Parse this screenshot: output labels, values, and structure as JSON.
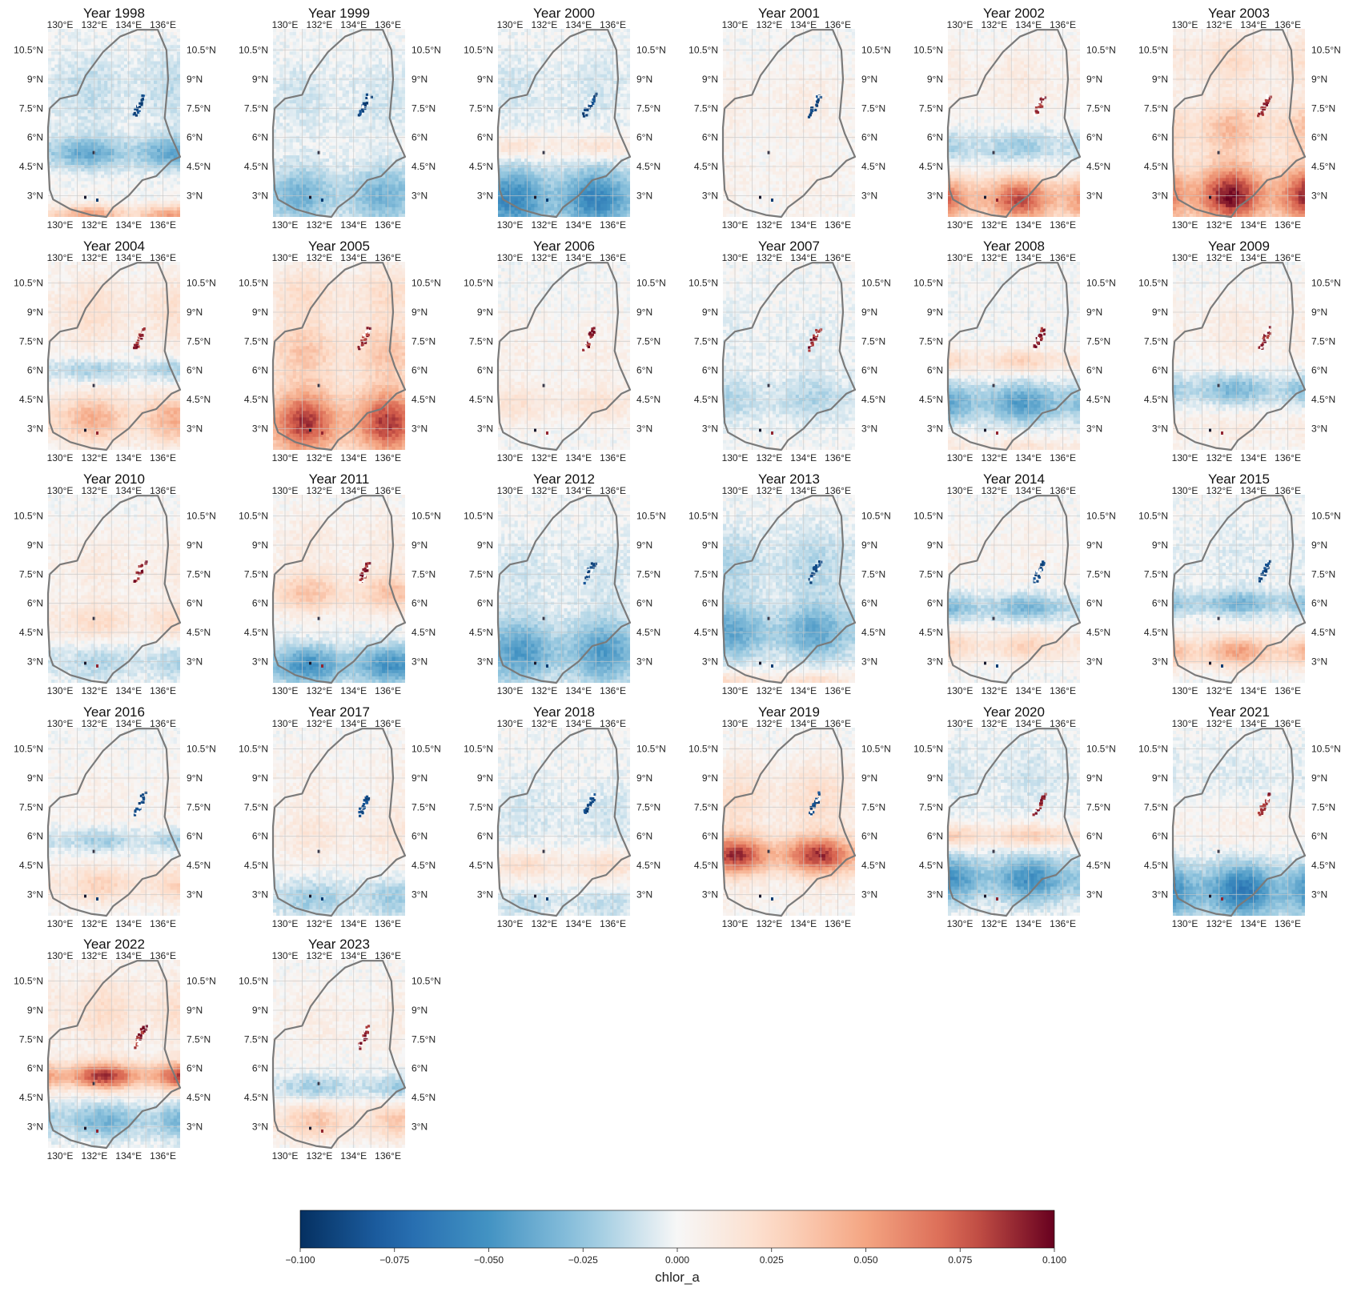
{
  "chart_data": {
    "type": "heatmap",
    "variable": "chlor_a",
    "colormap": "RdBu_r",
    "grid_layout": {
      "rows": 5,
      "cols": 6
    },
    "title_prefix": "Year ",
    "years": [
      "1998",
      "1999",
      "2000",
      "2001",
      "2002",
      "2003",
      "2004",
      "2005",
      "2006",
      "2007",
      "2008",
      "2009",
      "2010",
      "2011",
      "2012",
      "2013",
      "2014",
      "2015",
      "2016",
      "2017",
      "2018",
      "2019",
      "2020",
      "2021",
      "2022",
      "2023"
    ],
    "x_ticks": [
      "130°E",
      "132°E",
      "134°E",
      "136°E"
    ],
    "x_tick_values": [
      130,
      132,
      134,
      136
    ],
    "y_ticks": [
      "10.5°N",
      "9°N",
      "7.5°N",
      "6°N",
      "4.5°N",
      "3°N"
    ],
    "y_tick_values": [
      10.5,
      9,
      7.5,
      6,
      4.5,
      3
    ],
    "lon_range": [
      129.3,
      137.0
    ],
    "lat_range": [
      1.9,
      11.6
    ],
    "colorbar": {
      "label": "chlor_a",
      "vmin": -0.1,
      "vmax": 0.1,
      "ticks": [
        "−0.100",
        "−0.075",
        "−0.050",
        "−0.025",
        "0.000",
        "0.025",
        "0.050",
        "0.075",
        "0.100"
      ],
      "tick_values": [
        -0.1,
        -0.075,
        -0.05,
        -0.025,
        0,
        0.025,
        0.05,
        0.075,
        0.1
      ]
    },
    "boundary_outline": [
      [
        129.4,
        7.5
      ],
      [
        130.0,
        8.0
      ],
      [
        131.0,
        8.2
      ],
      [
        131.5,
        9.2
      ],
      [
        132.5,
        10.4
      ],
      [
        133.5,
        11.2
      ],
      [
        134.5,
        11.55
      ],
      [
        135.7,
        11.55
      ],
      [
        136.2,
        10.5
      ],
      [
        136.3,
        9.0
      ],
      [
        136.1,
        7.0
      ],
      [
        136.4,
        6.2
      ],
      [
        137.0,
        5.0
      ],
      [
        136.5,
        4.8
      ],
      [
        135.6,
        4.0
      ],
      [
        134.8,
        3.8
      ],
      [
        134.0,
        3.0
      ],
      [
        133.1,
        2.4
      ],
      [
        132.7,
        1.9
      ],
      [
        131.8,
        2.0
      ],
      [
        130.6,
        2.3
      ],
      [
        129.6,
        2.8
      ],
      [
        129.4,
        3.3
      ],
      [
        129.3,
        5.0
      ],
      [
        129.3,
        6.5
      ],
      [
        129.4,
        7.5
      ]
    ],
    "anomaly_patterns_note": "per-year spatial anomaly bands (lat center, lat spread, anomaly value)",
    "years_bands": [
      [
        [
          5.2,
          0.8,
          -0.035
        ],
        [
          2.0,
          0.5,
          0.045
        ],
        [
          8.5,
          2.0,
          -0.012
        ]
      ],
      [
        [
          3.0,
          1.5,
          -0.03
        ],
        [
          8.0,
          2.0,
          -0.008
        ]
      ],
      [
        [
          2.8,
          1.6,
          -0.05
        ],
        [
          5.5,
          0.6,
          0.018
        ],
        [
          8.5,
          2.0,
          -0.008
        ]
      ],
      [
        [
          3.5,
          2.0,
          0.006
        ],
        [
          8.0,
          2.0,
          0.008
        ]
      ],
      [
        [
          2.8,
          1.2,
          0.07
        ],
        [
          5.5,
          0.9,
          -0.02
        ],
        [
          9.0,
          2.0,
          0.01
        ]
      ],
      [
        [
          3.0,
          1.6,
          0.085
        ],
        [
          6.5,
          1.4,
          0.035
        ],
        [
          10,
          1.5,
          0.02
        ]
      ],
      [
        [
          3.5,
          1.3,
          0.04
        ],
        [
          6.0,
          0.6,
          -0.02
        ],
        [
          9.0,
          2.0,
          0.018
        ]
      ],
      [
        [
          3.3,
          1.8,
          0.075
        ],
        [
          7.0,
          1.5,
          0.03
        ],
        [
          10,
          1.5,
          0.02
        ]
      ],
      [
        [
          4.2,
          1.0,
          0.015
        ],
        [
          7.0,
          2.0,
          0.006
        ]
      ],
      [
        [
          4.5,
          1.2,
          -0.015
        ],
        [
          7.5,
          2.0,
          -0.004
        ]
      ],
      [
        [
          4.3,
          1.0,
          -0.04
        ],
        [
          6.5,
          0.6,
          0.025
        ],
        [
          2.0,
          0.6,
          0.015
        ]
      ],
      [
        [
          5.0,
          0.8,
          -0.03
        ],
        [
          3.0,
          1.0,
          0.01
        ],
        [
          8.0,
          2.0,
          0.01
        ]
      ],
      [
        [
          5.0,
          1.0,
          0.02
        ],
        [
          3.0,
          1.0,
          -0.015
        ],
        [
          8.0,
          2.0,
          0.01
        ]
      ],
      [
        [
          2.8,
          1.0,
          -0.045
        ],
        [
          6.5,
          1.0,
          0.03
        ],
        [
          9.0,
          2.0,
          0.01
        ]
      ],
      [
        [
          3.5,
          1.6,
          -0.04
        ],
        [
          7.5,
          2.0,
          -0.008
        ]
      ],
      [
        [
          4.5,
          1.4,
          -0.035
        ],
        [
          2.0,
          0.5,
          0.02
        ],
        [
          8.0,
          2.0,
          -0.015
        ]
      ],
      [
        [
          3.8,
          0.8,
          0.025
        ],
        [
          5.8,
          0.7,
          -0.03
        ],
        [
          8.5,
          2.0,
          0.005
        ]
      ],
      [
        [
          3.5,
          0.8,
          0.045
        ],
        [
          6.0,
          0.6,
          -0.03
        ],
        [
          8.5,
          2.0,
          -0.005
        ]
      ],
      [
        [
          3.5,
          1.0,
          0.025
        ],
        [
          5.8,
          0.6,
          -0.02
        ],
        [
          8.0,
          2.0,
          0.006
        ]
      ],
      [
        [
          2.8,
          1.0,
          -0.02
        ],
        [
          6.0,
          1.5,
          0.012
        ],
        [
          9.0,
          2.0,
          0.006
        ]
      ],
      [
        [
          4.5,
          0.8,
          0.02
        ],
        [
          7.0,
          2.0,
          -0.008
        ],
        [
          2.5,
          0.8,
          -0.012
        ]
      ],
      [
        [
          5.0,
          1.0,
          0.075
        ],
        [
          8.0,
          2.0,
          0.02
        ],
        [
          2.8,
          1.0,
          0.006
        ]
      ],
      [
        [
          3.8,
          1.2,
          -0.045
        ],
        [
          6.0,
          0.6,
          0.03
        ],
        [
          9.0,
          2.0,
          -0.008
        ]
      ],
      [
        [
          3.2,
          1.4,
          -0.055
        ],
        [
          6.5,
          1.5,
          0.008
        ],
        [
          9.0,
          2.0,
          -0.006
        ]
      ],
      [
        [
          5.6,
          0.7,
          0.075
        ],
        [
          3.3,
          0.9,
          -0.03
        ],
        [
          9.0,
          2.0,
          0.02
        ]
      ],
      [
        [
          3.3,
          1.0,
          0.03
        ],
        [
          5.0,
          0.7,
          -0.02
        ],
        [
          8.5,
          2.0,
          0.008
        ]
      ]
    ],
    "island_cluster_sign": [
      -1,
      -1,
      -1,
      -1,
      1,
      1,
      1,
      1,
      1,
      1,
      1,
      1,
      1,
      1,
      -1,
      -1,
      -1,
      -1,
      -1,
      -1,
      -1,
      -1,
      1,
      1,
      1,
      1
    ]
  }
}
